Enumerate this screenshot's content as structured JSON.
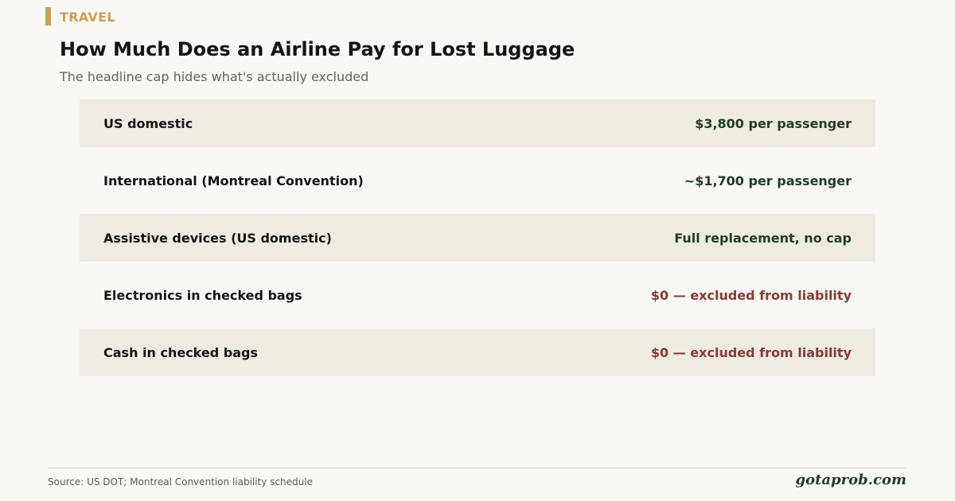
{
  "header": {
    "category": "TRAVEL",
    "title": "How Much Does an Airline Pay for Lost Luggage",
    "subtitle": "The headline cap hides what's actually excluded"
  },
  "rows": [
    {
      "label": "US domestic",
      "value": "$3,800 per passenger",
      "kind": "positive"
    },
    {
      "label": "International (Montreal Convention)",
      "value": "~$1,700 per passenger",
      "kind": "positive"
    },
    {
      "label": "Assistive devices (US domestic)",
      "value": "Full replacement, no cap",
      "kind": "positive"
    },
    {
      "label": "Electronics in checked bags",
      "value": "$0 — excluded from liability",
      "kind": "negative"
    },
    {
      "label": "Cash in checked bags",
      "value": "$0 — excluded from liability",
      "kind": "negative"
    }
  ],
  "footer": {
    "source": "Source: US DOT; Montreal Convention liability schedule",
    "brand": "gotaprob.com"
  },
  "colors": {
    "accent": "#c9a153",
    "positive": "#1f3d26",
    "negative": "#873a3a",
    "row_shade": "#efebe1",
    "background": "#f9f8f4"
  }
}
